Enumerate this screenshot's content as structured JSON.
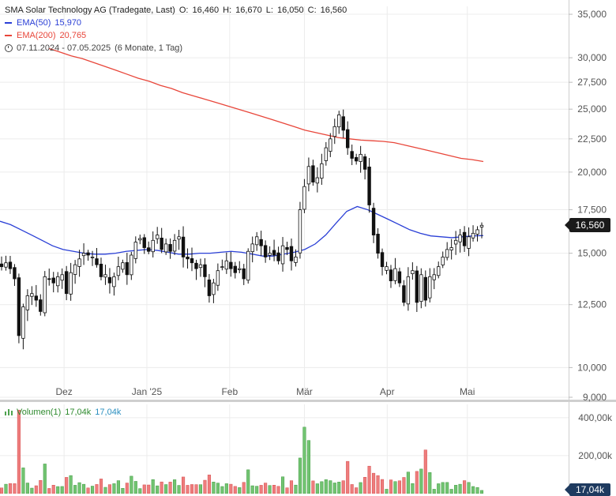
{
  "header": {
    "title": "SMA Solar Technology AG (Tradegate, Last)",
    "ohlc": {
      "o_label": "O:",
      "o": "16,460",
      "h_label": "H:",
      "h": "16,670",
      "l_label": "L:",
      "l": "16,050",
      "c_label": "C:",
      "c": "16,560"
    },
    "ema50_label": "EMA(50)",
    "ema50_value": "15,970",
    "ema200_label": "EMA(200)",
    "ema200_value": "20,765",
    "range": "07.11.2024 - 07.05.2025",
    "period": "(6 Monate, 1 Tag)",
    "icons": {
      "clock": "clock-icon",
      "volume": "bars-icon"
    }
  },
  "volume_legend": {
    "label": "Volumen(1)",
    "value_green": "17,04k",
    "value_blue": "17,04k"
  },
  "price_tag": "16,560",
  "volume_tag": "17,04k",
  "colors": {
    "ema50": "#2a3fd6",
    "ema200": "#e8463a",
    "vol_up": "#72c472",
    "vol_down": "#ee7d7d",
    "candle": "#111111"
  },
  "chart_data": {
    "type": "candlestick",
    "y_scale": "log",
    "ylim": [
      9000,
      36000
    ],
    "y_ticks": [
      {
        "v": 35000,
        "label": "35,000"
      },
      {
        "v": 30000,
        "label": "30,000"
      },
      {
        "v": 27500,
        "label": "27,500"
      },
      {
        "v": 25000,
        "label": "25,000"
      },
      {
        "v": 22500,
        "label": "22,500"
      },
      {
        "v": 20000,
        "label": "20,000"
      },
      {
        "v": 17500,
        "label": "17,500"
      },
      {
        "v": 15000,
        "label": "15,000"
      },
      {
        "v": 12500,
        "label": "12,500"
      },
      {
        "v": 10000,
        "label": "10,000"
      },
      {
        "v": 9000,
        "label": "9,000"
      }
    ],
    "x_ticks": [
      {
        "date": "2024-12-01",
        "label": "Dez"
      },
      {
        "date": "2025-01-01",
        "label": "Jan '25"
      },
      {
        "date": "2025-02-01",
        "label": "Feb"
      },
      {
        "date": "2025-03-01",
        "label": "Mär"
      },
      {
        "date": "2025-04-01",
        "label": "Apr"
      },
      {
        "date": "2025-05-01",
        "label": "Mai"
      }
    ],
    "start_date": "2024-11-07",
    "closes": [
      14.3,
      14.5,
      14.2,
      13.7,
      11.2,
      12.4,
      12.9,
      13.0,
      12.7,
      12.2,
      13.8,
      13.7,
      13.5,
      13.8,
      13.9,
      13.0,
      14.0,
      14.4,
      14.7,
      15.0,
      14.9,
      14.8,
      14.4,
      13.8,
      13.9,
      13.5,
      13.8,
      14.3,
      14.5,
      13.9,
      14.9,
      15.6,
      15.8,
      15.3,
      15.1,
      15.7,
      16.0,
      15.2,
      15.5,
      15.1,
      15.7,
      15.9,
      14.8,
      14.7,
      14.5,
      14.2,
      14.4,
      13.8,
      12.9,
      13.5,
      14.1,
      14.3,
      14.6,
      14.2,
      14.0,
      14.2,
      13.7,
      15.1,
      15.5,
      15.9,
      15.4,
      14.8,
      15.0,
      14.9,
      14.6,
      15.4,
      15.2,
      14.6,
      14.8,
      17.5,
      19.0,
      20.4,
      19.3,
      19.6,
      20.6,
      21.8,
      22.5,
      23.5,
      24.5,
      23.2,
      21.8,
      21.0,
      20.8,
      21.3,
      20.2,
      17.8,
      16.0,
      15.0,
      14.3,
      14.3,
      13.6,
      14.2,
      13.5,
      12.6,
      13.8,
      14.1,
      12.6,
      13.9,
      12.7,
      13.8,
      13.9,
      14.3,
      14.8,
      15.2,
      15.3,
      15.7,
      16.0,
      15.4,
      15.9,
      16.1,
      16.3,
      16.56
    ],
    "ema50": [
      16.8,
      16.6,
      16.3,
      16.0,
      15.7,
      15.4,
      15.2,
      15.1,
      15.0,
      14.95,
      14.95,
      15.0,
      15.1,
      15.15,
      15.2,
      15.15,
      15.05,
      14.95,
      14.95,
      15.0,
      15.0,
      15.05,
      15.1,
      15.05,
      14.95,
      14.85,
      14.85,
      14.95,
      15.05,
      15.2,
      15.5,
      16.0,
      16.7,
      17.4,
      17.7,
      17.5,
      17.2,
      16.9,
      16.6,
      16.3,
      16.1,
      15.95,
      15.9,
      15.85,
      15.9,
      15.95,
      15.97
    ],
    "ema200": [
      31.0,
      30.6,
      30.2,
      29.9,
      29.5,
      29.1,
      28.7,
      28.3,
      27.9,
      27.6,
      27.2,
      26.9,
      26.5,
      26.2,
      25.9,
      25.6,
      25.3,
      25.0,
      24.7,
      24.4,
      24.1,
      23.8,
      23.5,
      23.2,
      23.0,
      22.8,
      22.6,
      22.5,
      22.4,
      22.35,
      22.3,
      22.2,
      22.0,
      21.8,
      21.6,
      21.4,
      21.2,
      21.0,
      20.9,
      20.765
    ],
    "volume_max_label": [
      {
        "v": 400,
        "label": "400,00k"
      },
      {
        "v": 200,
        "label": "200,00k"
      }
    ]
  }
}
